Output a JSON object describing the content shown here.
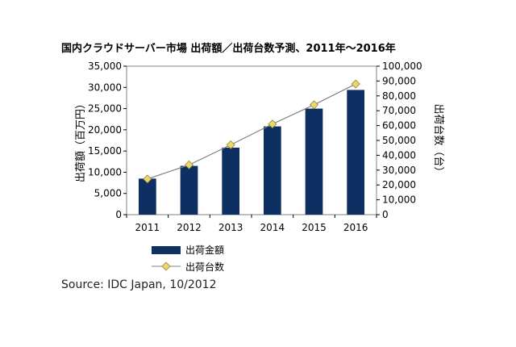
{
  "chart_data": {
    "type": "bar+line",
    "title": "国内クラウドサーバー市場 出荷額／出荷台数予測、2011年～2016年",
    "categories": [
      "2011",
      "2012",
      "2013",
      "2014",
      "2015",
      "2016"
    ],
    "series": [
      {
        "name": "出荷金額",
        "type": "bar",
        "axis": "left",
        "color": "#0d2f62",
        "values": [
          8500,
          11500,
          15800,
          20800,
          25000,
          29400
        ]
      },
      {
        "name": "出荷台数",
        "type": "line",
        "axis": "right",
        "color": "#e8d670",
        "line_color": "#808080",
        "values": [
          24000,
          33500,
          47000,
          61000,
          74000,
          88000
        ]
      }
    ],
    "ylabel": "出荷額（百万円）",
    "y2label": "出荷台数（台）",
    "ylim": [
      0,
      35000
    ],
    "y2lim": [
      0,
      100000
    ],
    "yticks": [
      "0",
      "5,000",
      "10,000",
      "15,000",
      "20,000",
      "25,000",
      "30,000",
      "35,000"
    ],
    "y2ticks": [
      "0",
      "10,000",
      "20,000",
      "30,000",
      "40,000",
      "50,000",
      "60,000",
      "70,000",
      "80,000",
      "90,000",
      "100,000"
    ],
    "grid": false,
    "legend_placement": "bottom-left"
  },
  "source": "Source: IDC Japan, 10/2012"
}
